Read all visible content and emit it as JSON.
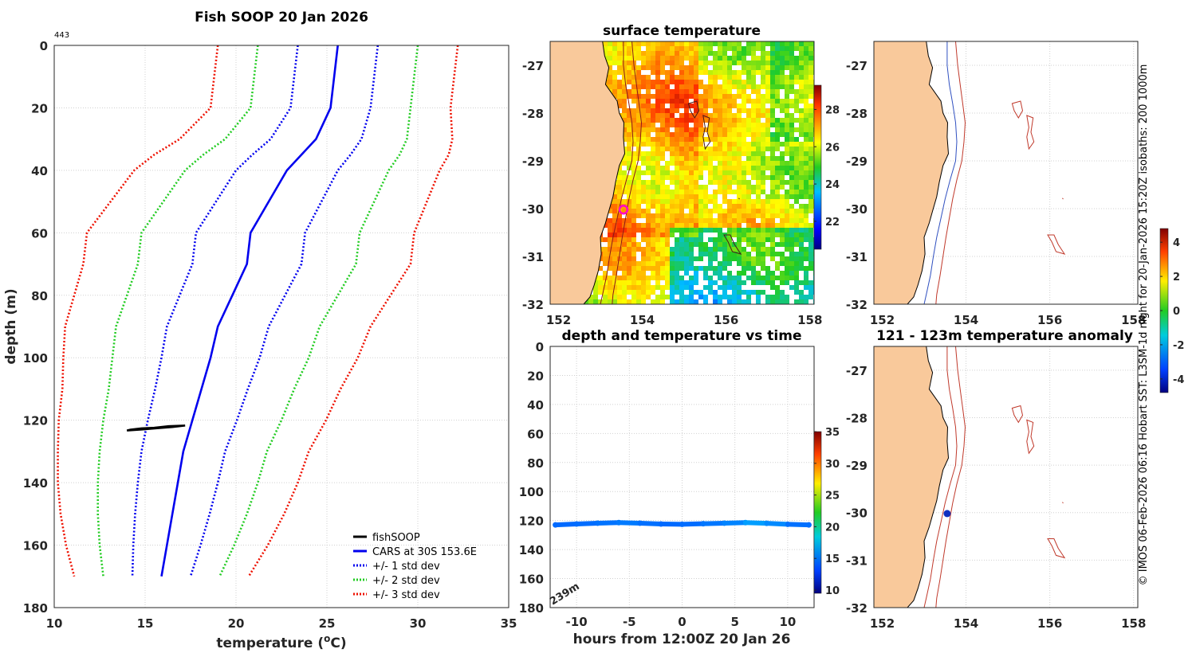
{
  "chart_data": [
    {
      "type": "line",
      "title": "Fish SOOP 20 Jan 2026",
      "corner_label": "443",
      "xlabel": "temperature (",
      "xlabel_unit": "o",
      "xlabel_end": "C)",
      "ylabel": "depth (m)",
      "xlim": [
        10,
        35
      ],
      "ylim": [
        0,
        180
      ],
      "xticks": [
        "10",
        "15",
        "20",
        "25",
        "30",
        "35"
      ],
      "yticks": [
        "0",
        "20",
        "40",
        "60",
        "80",
        "100",
        "120",
        "140",
        "160",
        "180"
      ],
      "cars_depth": [
        0,
        5,
        10,
        15,
        20,
        25,
        30,
        35,
        40,
        45,
        50,
        55,
        60,
        70,
        80,
        90,
        100,
        110,
        120,
        130,
        140,
        150,
        160,
        170
      ],
      "cars_temp": [
        25.6,
        25.5,
        25.4,
        25.3,
        25.2,
        24.8,
        24.4,
        23.6,
        22.8,
        22.3,
        21.8,
        21.3,
        20.8,
        20.6,
        19.8,
        19.0,
        18.6,
        18.1,
        17.6,
        17.1,
        16.8,
        16.5,
        16.2,
        15.9
      ],
      "cars_std": [
        2.2,
        2.2,
        2.2,
        2.2,
        2.2,
        2.35,
        2.5,
        2.7,
        2.8,
        2.85,
        2.9,
        2.95,
        3.0,
        3.0,
        2.9,
        2.8,
        2.7,
        2.55,
        2.45,
        2.3,
        2.2,
        2.05,
        1.85,
        1.6
      ],
      "series": [
        {
          "name": "fishSOOP",
          "color": "#000000",
          "style": "solid",
          "temp": [
            14.2,
            14.8,
            15.5,
            16.3,
            17.2,
            16.5,
            15.6,
            14.8,
            14.0
          ],
          "depth": [
            123.0,
            122.6,
            122.4,
            121.9,
            121.7,
            122.2,
            122.6,
            123.0,
            123.3
          ]
        },
        {
          "name": "CARS at 30S 153.6E",
          "color": "#0000ee",
          "style": "solid",
          "offset": 0
        },
        {
          "name": "+/- 1 std dev",
          "color": "#0000ee",
          "style": "dotted",
          "offset": 1
        },
        {
          "name": "+/- 2 std dev",
          "color": "#22cc22",
          "style": "dotted",
          "offset": 2
        },
        {
          "name": "+/- 3 std dev",
          "color": "#ee1100",
          "style": "dotted",
          "offset": 3
        }
      ]
    },
    {
      "type": "heatmap",
      "title": "surface temperature",
      "xlim": [
        151.8,
        158.1
      ],
      "ylim": [
        -32,
        -26.5
      ],
      "xticks": [
        "152",
        "154",
        "156",
        "158"
      ],
      "yticks": [
        "-27",
        "-28",
        "-29",
        "-30",
        "-31",
        "-32"
      ],
      "colorbar_ticks": [
        "22",
        "24",
        "26",
        "28"
      ],
      "colorbar_range": [
        20.5,
        29.3
      ],
      "marker": {
        "lon": 153.55,
        "lat": -30.02,
        "color": "#ff00cc"
      }
    },
    {
      "type": "scatter",
      "title": "depth and temperature vs time",
      "xlabel": "hours from 12:00Z 20 Jan 26",
      "xlim": [
        -12.5,
        12.5
      ],
      "ylim": [
        0,
        180
      ],
      "xticks": [
        "-10",
        "-5",
        "0",
        "5",
        "10"
      ],
      "yticks": [
        "0",
        "20",
        "40",
        "60",
        "80",
        "100",
        "120",
        "140",
        "160",
        "180"
      ],
      "colorbar_ticks": [
        "10",
        "15",
        "20",
        "25",
        "30",
        "35"
      ],
      "colorbar_range": [
        9.5,
        35
      ],
      "annotation": "239m",
      "hours": [
        -12,
        -10,
        -8,
        -6,
        -4,
        -2,
        0,
        2,
        4,
        6,
        8,
        10,
        12
      ],
      "depth": [
        123.0,
        122.4,
        121.8,
        121.4,
        121.8,
        122.4,
        122.6,
        122.2,
        121.8,
        121.4,
        121.9,
        122.6,
        123.0
      ],
      "temperature": [
        15.8,
        15.9,
        16.1,
        16.3,
        16.0,
        15.8,
        15.9,
        16.2,
        16.6,
        17.4,
        16.8,
        16.0,
        15.6
      ]
    },
    {
      "type": "map",
      "title": "",
      "xlim": [
        151.8,
        158.1
      ],
      "ylim": [
        -32,
        -26.5
      ],
      "xticks": [
        "152",
        "154",
        "156",
        "158"
      ],
      "yticks": [
        "-27",
        "-28",
        "-29",
        "-30",
        "-31",
        "-32"
      ]
    },
    {
      "type": "map",
      "title": "121 - 123m temperature anomaly",
      "xlim": [
        151.8,
        158.1
      ],
      "ylim": [
        -32,
        -26.5
      ],
      "xticks": [
        "152",
        "154",
        "156",
        "158"
      ],
      "yticks": [
        "-27",
        "-28",
        "-29",
        "-30",
        "-31",
        "-32"
      ],
      "colorbar_ticks": [
        "-4",
        "-2",
        "0",
        "2",
        "4"
      ],
      "colorbar_range": [
        -4.8,
        4.8
      ],
      "marker": {
        "lon": 153.55,
        "lat": -30.02,
        "color": "#1030c0"
      }
    }
  ],
  "credit": "© IMOS 06-Feb-2026 06:16 Hobart SST: L3SM-1d night for 20-Jan-2026 15:20Z isobaths: 200  1000m",
  "colors": {
    "land": "#f9c99b",
    "cars": "#0000ee",
    "green": "#22cc22",
    "red": "#ee1100",
    "isobath_200": "#3050c0",
    "isobath_1000": "#c0392b",
    "track": "#8b1a1a"
  }
}
